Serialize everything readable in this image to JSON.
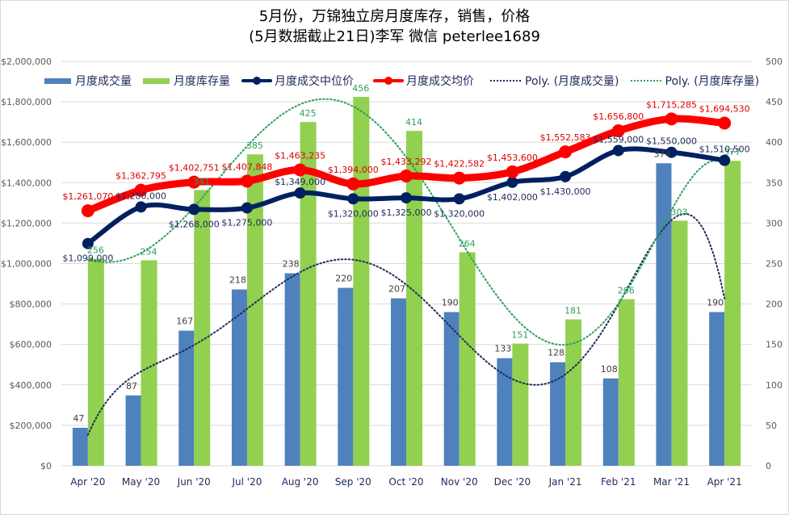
{
  "title": {
    "line1": "5月份，万锦独立房月度库存，销售，价格",
    "line2": "(5月数据截止21日)李军  微信 peterlee1689"
  },
  "legend": {
    "sales": "月度成交量",
    "inventory": "月度库存量",
    "median": "月度成交中位价",
    "average": "月度成交均价",
    "poly_sales": "Poly. (月度成交量)",
    "poly_inventory": "Poly. (月度库存量)"
  },
  "colors": {
    "sales": "#4f81bd",
    "inventory": "#92d050",
    "median": "#002060",
    "average": "#ff0000",
    "poly_sales": "#1f2a5a",
    "poly_inventory": "#2ca05a",
    "inventory_label": "#2ca05a",
    "average_label": "#e00000",
    "median_label": "#1f2a5a",
    "sales_label": "#404040",
    "grid": "#d9d9d9"
  },
  "chart_data": {
    "type": "bar",
    "title": "5月份，万锦独立房月度库存，销售，价格 (5月数据截止21日)李军 微信 peterlee1689",
    "categories": [
      "Apr '20",
      "May '20",
      "Jun '20",
      "Jul '20",
      "Aug '20",
      "Sep '20",
      "Oct '20",
      "Nov '20",
      "Dec '20",
      "Jan '21",
      "Feb '21",
      "Mar '21",
      "Apr '21"
    ],
    "left_axis": {
      "ylim": [
        0,
        2000000
      ],
      "ticks": [
        "$0",
        "$200,000",
        "$400,000",
        "$600,000",
        "$800,000",
        "$1,000,000",
        "$1,200,000",
        "$1,400,000",
        "$1,600,000",
        "$1,800,000",
        "$2,000,000"
      ]
    },
    "right_axis": {
      "ylim": [
        0,
        500
      ],
      "ticks": [
        "0",
        "50",
        "100",
        "150",
        "200",
        "250",
        "300",
        "350",
        "400",
        "450",
        "500"
      ]
    },
    "grid": true,
    "legend_position": "top",
    "series": [
      {
        "name": "月度成交量",
        "type": "bar",
        "axis": "right",
        "values": [
          47,
          87,
          167,
          218,
          238,
          220,
          207,
          190,
          133,
          128,
          108,
          374,
          190
        ],
        "labels": [
          "47",
          "87",
          "167",
          "218",
          "238",
          "220",
          "207",
          "190",
          "133",
          "128",
          "108",
          "374",
          "190"
        ]
      },
      {
        "name": "月度库存量",
        "type": "bar",
        "axis": "right",
        "values": [
          256,
          254,
          341,
          385,
          425,
          456,
          414,
          264,
          151,
          181,
          206,
          303,
          377
        ],
        "labels": [
          "256",
          "254",
          "341",
          "385",
          "425",
          "456",
          "414",
          "264",
          "151",
          "181",
          "206",
          "303",
          "377"
        ]
      },
      {
        "name": "月度成交中位价",
        "type": "line",
        "axis": "left",
        "values": [
          1099000,
          1280000,
          1268000,
          1275000,
          1349000,
          1320000,
          1325000,
          1320000,
          1402000,
          1430000,
          1559000,
          1550000,
          1510500
        ],
        "labels": [
          "$1,099,000",
          "$1,280,000",
          "$1,268,000",
          "$1,275,000",
          "$1,349,000",
          "$1,320,000",
          "$1,325,000",
          "$1,320,000",
          "$1,402,000",
          "$1,430,000",
          "$1,559,000",
          "$1,550,000",
          "$1,510,500"
        ]
      },
      {
        "name": "月度成交均价",
        "type": "line",
        "axis": "left",
        "values": [
          1261070,
          1362795,
          1402751,
          1407848,
          1463235,
          1394000,
          1433292,
          1422582,
          1453600,
          1552583,
          1656800,
          1715285,
          1694530
        ],
        "labels": [
          "$1,261,070",
          "$1,362,795",
          "$1,402,751",
          "$1,407,848",
          "$1,463,235",
          "$1,394,000",
          "$1,433,292",
          "$1,422,582",
          "$1,453,600",
          "$1,552,583",
          "$1,656,800",
          "$1,715,285",
          "$1,694,530"
        ]
      },
      {
        "name": "Poly. (月度成交量)",
        "type": "trendline",
        "axis": "right",
        "of": "月度成交量"
      },
      {
        "name": "Poly. (月度库存量)",
        "type": "trendline",
        "axis": "right",
        "of": "月度库存量"
      }
    ]
  }
}
